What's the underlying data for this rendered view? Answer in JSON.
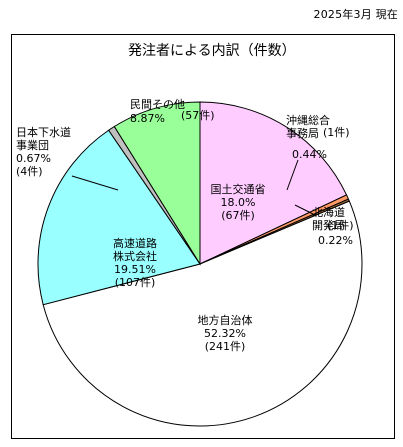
{
  "date_label": "2025年3月 現在",
  "chart_data": {
    "type": "pie",
    "title": "発注者による内訳（件数）",
    "slices": [
      {
        "name": "国土交通省",
        "percent_label": "18.0%",
        "count_label": "(67件)",
        "value": 67,
        "color": "#ffccff"
      },
      {
        "name": "沖縄総合事務局",
        "name_line1": "沖縄総合",
        "name_line2": "事務局",
        "percent_label": "0.44%",
        "count_label": "(1件)",
        "value": 1,
        "color": "#ff9966"
      },
      {
        "name": "北海道開発局",
        "name_line1": "北海道",
        "name_line2": "開発局",
        "percent_label": "0.22%",
        "count_label": "(1件)",
        "value": 1,
        "color": "#996633"
      },
      {
        "name": "地方自治体",
        "percent_label": "52.32%",
        "count_label": "(241件)",
        "value": 241,
        "color": "#ffffff"
      },
      {
        "name": "高速道路株式会社",
        "name_line1": "高速道路",
        "name_line2": "株式会社",
        "percent_label": "19.51%",
        "count_label": "(107件)",
        "value": 107,
        "color": "#99ffff"
      },
      {
        "name": "日本下水道事業団",
        "name_line1": "日本下水道",
        "name_line2": "事業団",
        "percent_label": "0.67%",
        "count_label": "(4件)",
        "value": 4,
        "color": "#c0c0c0"
      },
      {
        "name": "民間その他",
        "percent_label": "8.87%",
        "count_label": "(57件)",
        "value": 57,
        "color": "#99ff99"
      }
    ],
    "percent_values": [
      18.0,
      0.44,
      0.22,
      52.32,
      19.51,
      0.67,
      8.87
    ],
    "legend": "none"
  }
}
